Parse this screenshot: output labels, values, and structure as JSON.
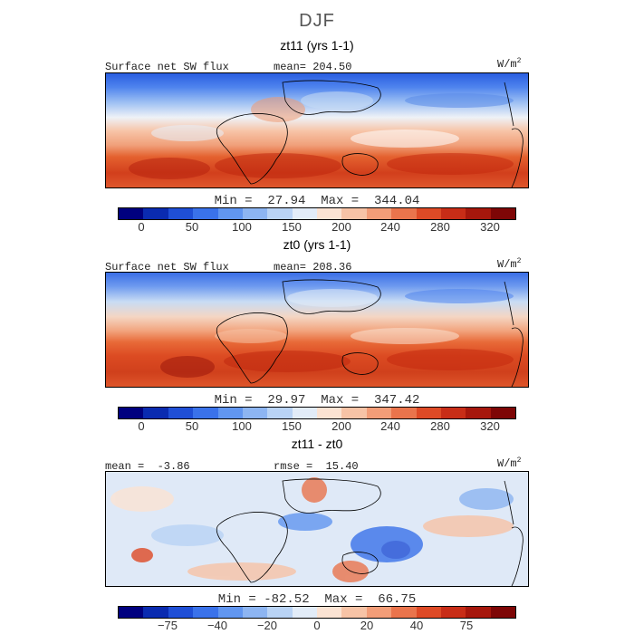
{
  "title": "DJF",
  "panels": [
    {
      "title": "zt11 (yrs 1-1)",
      "left_label": "Surface net SW flux",
      "center_label": "mean= 204.50",
      "units": "W/m",
      "units_exp": "2",
      "minmax": "Min =  27.94  Max =  344.04",
      "colorbar": {
        "colors": [
          "#00007f",
          "#0a2bb0",
          "#1f4fd6",
          "#3a72ea",
          "#6196f0",
          "#8db5f2",
          "#b9d3f5",
          "#e2ecf8",
          "#fbe3d3",
          "#f7c3a6",
          "#f29d78",
          "#ea744c",
          "#de4a26",
          "#c82d17",
          "#a6170c",
          "#7e0606"
        ],
        "ticks": [
          "0",
          "50",
          "100",
          "150",
          "200",
          "240",
          "280",
          "320"
        ]
      }
    },
    {
      "title": "zt0 (yrs 1-1)",
      "left_label": "Surface net SW flux",
      "center_label": "mean= 208.36",
      "units": "W/m",
      "units_exp": "2",
      "minmax": "Min =  29.97  Max =  347.42",
      "colorbar": {
        "colors": [
          "#00007f",
          "#0a2bb0",
          "#1f4fd6",
          "#3a72ea",
          "#6196f0",
          "#8db5f2",
          "#b9d3f5",
          "#e2ecf8",
          "#fbe3d3",
          "#f7c3a6",
          "#f29d78",
          "#ea744c",
          "#de4a26",
          "#c82d17",
          "#a6170c",
          "#7e0606"
        ],
        "ticks": [
          "0",
          "50",
          "100",
          "150",
          "200",
          "240",
          "280",
          "320"
        ]
      }
    },
    {
      "title": "zt11 - zt0",
      "left_label": "mean =  -3.86",
      "center_label": "rmse =  15.40",
      "units": "W/m",
      "units_exp": "2",
      "minmax": "Min = -82.52  Max =  66.75",
      "colorbar": {
        "colors": [
          "#00007f",
          "#0a2bb0",
          "#1f4fd6",
          "#3a72ea",
          "#6196f0",
          "#8db5f2",
          "#b9d3f5",
          "#e2ecf8",
          "#fbe3d3",
          "#f7c3a6",
          "#f29d78",
          "#ea744c",
          "#de4a26",
          "#c82d17",
          "#a6170c",
          "#7e0606"
        ],
        "ticks": [
          "-75",
          "-40",
          "-20",
          "0",
          "20",
          "40",
          "75"
        ]
      }
    }
  ]
}
